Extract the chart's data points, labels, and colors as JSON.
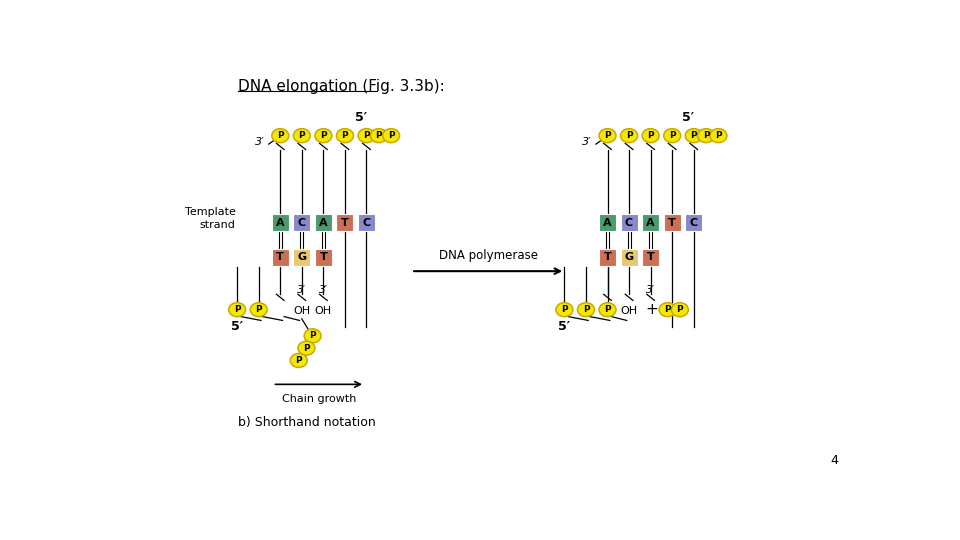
{
  "title": "DNA elongation (Fig. 3.3b):",
  "bg_color": "#ffffff",
  "colors": {
    "A": "#4a9a6e",
    "C": "#8888cc",
    "T": "#cc7055",
    "G": "#e8c870",
    "P_fill": "#f5e800",
    "P_edge": "#c8a800"
  },
  "tb_letters": [
    "A",
    "C",
    "A",
    "T",
    "C"
  ],
  "nb_letters": [
    "T",
    "G",
    "T"
  ],
  "footnote": "4",
  "label_5prime": "5′",
  "label_3prime": "3′"
}
